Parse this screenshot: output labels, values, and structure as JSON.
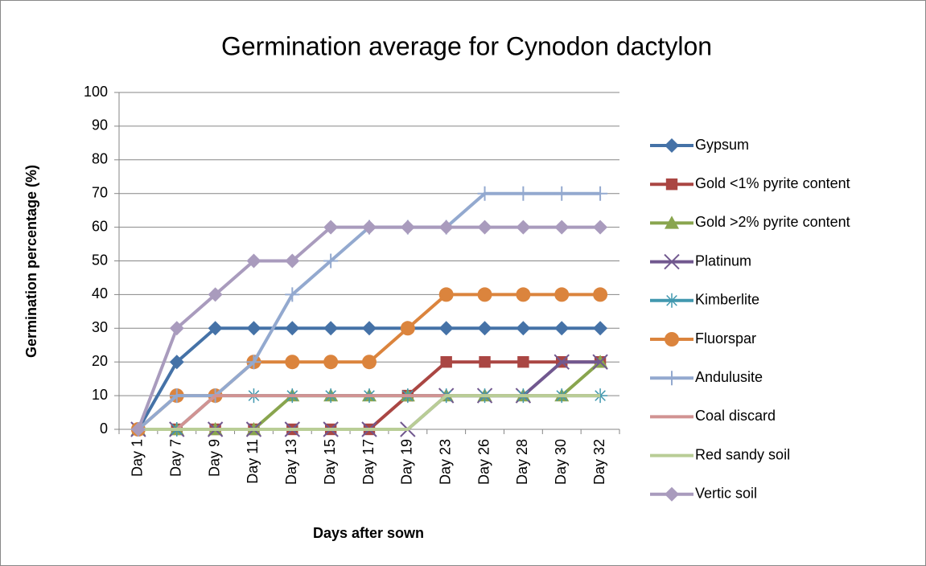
{
  "chart_data": {
    "type": "line",
    "title": "Germination average for Cynodon dactylon",
    "x_label": "Days after sown",
    "y_label": "Germination percentage (%)",
    "categories": [
      "Day 1",
      "Day 7",
      "Day 9",
      "Day 11",
      "Day 13",
      "Day 15",
      "Day 17",
      "Day 19",
      "Day 23",
      "Day 26",
      "Day 28",
      "Day 30",
      "Day 32"
    ],
    "ylim": [
      0,
      100
    ],
    "yticks": [
      0,
      10,
      20,
      30,
      40,
      50,
      60,
      70,
      80,
      90,
      100
    ],
    "grid": true,
    "legend": "right",
    "series": [
      {
        "name": "Gypsum",
        "color": "#4572A7",
        "marker": "diamond",
        "values": [
          0,
          20,
          30,
          30,
          30,
          30,
          30,
          30,
          30,
          30,
          30,
          30,
          30
        ]
      },
      {
        "name": "Gold <1% pyrite content",
        "color": "#AA4643",
        "marker": "square",
        "values": [
          0,
          0,
          0,
          0,
          0,
          0,
          0,
          10,
          20,
          20,
          20,
          20,
          20
        ]
      },
      {
        "name": "Gold >2% pyrite content",
        "color": "#89A54E",
        "marker": "triangle",
        "values": [
          0,
          0,
          0,
          0,
          10,
          10,
          10,
          10,
          10,
          10,
          10,
          10,
          20
        ]
      },
      {
        "name": "Platinum",
        "color": "#71588F",
        "marker": "x",
        "values": [
          0,
          0,
          0,
          0,
          0,
          0,
          0,
          0,
          10,
          10,
          10,
          20,
          20
        ]
      },
      {
        "name": "Kimberlite",
        "color": "#4198AF",
        "marker": "star",
        "values": [
          0,
          0,
          10,
          10,
          10,
          10,
          10,
          10,
          10,
          10,
          10,
          10,
          10
        ]
      },
      {
        "name": "Fluorspar",
        "color": "#DB843D",
        "marker": "circle",
        "values": [
          0,
          10,
          10,
          20,
          20,
          20,
          20,
          30,
          40,
          40,
          40,
          40,
          40
        ]
      },
      {
        "name": "Andulusite",
        "color": "#93A9CF",
        "marker": "plus",
        "values": [
          0,
          10,
          10,
          20,
          40,
          50,
          60,
          60,
          60,
          70,
          70,
          70,
          70
        ]
      },
      {
        "name": "Coal discard",
        "color": "#D19392",
        "marker": "none",
        "values": [
          0,
          0,
          10,
          10,
          10,
          10,
          10,
          10,
          10,
          10,
          10,
          10,
          10
        ]
      },
      {
        "name": "Red sandy soil",
        "color": "#B9CD96",
        "marker": "none",
        "values": [
          0,
          0,
          0,
          0,
          0,
          0,
          0,
          0,
          10,
          10,
          10,
          10,
          10
        ]
      },
      {
        "name": "Vertic soil",
        "color": "#A99BBD",
        "marker": "diamond",
        "values": [
          0,
          30,
          40,
          50,
          50,
          60,
          60,
          60,
          60,
          60,
          60,
          60,
          60
        ]
      }
    ]
  }
}
